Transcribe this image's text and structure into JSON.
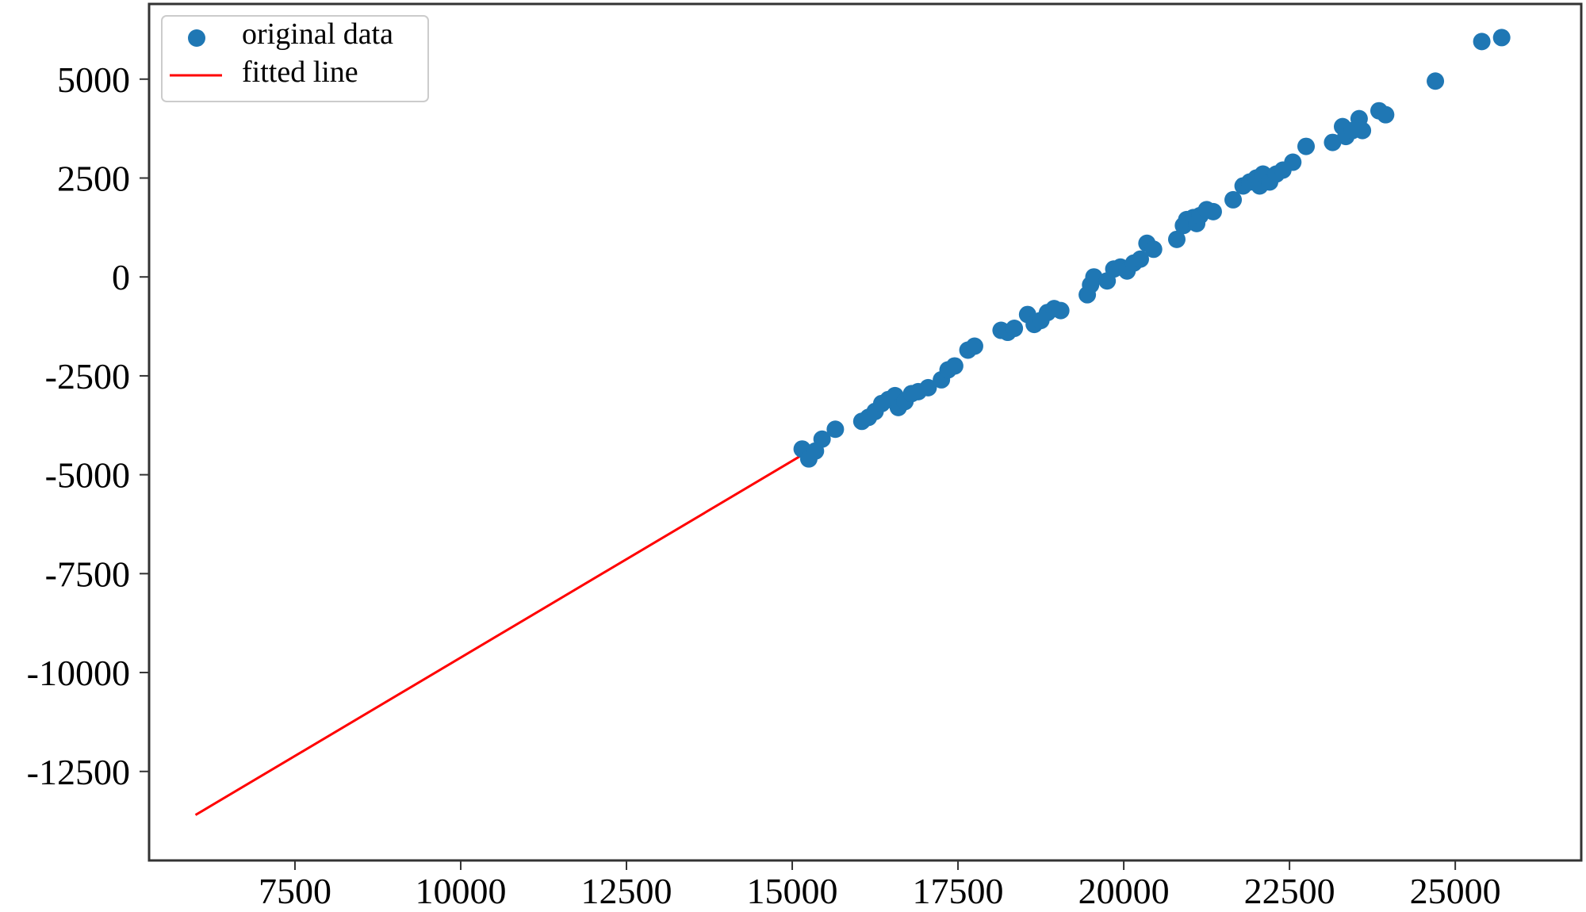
{
  "chart_data": {
    "type": "scatter",
    "title": "",
    "xlabel": "",
    "ylabel": "",
    "xlim": [
      5300,
      26900
    ],
    "ylim": [
      -14750,
      6900
    ],
    "x_ticks": [
      7500,
      10000,
      12500,
      15000,
      17500,
      20000,
      22500,
      25000
    ],
    "y_ticks": [
      5000,
      2500,
      0,
      -2500,
      -5000,
      -7500,
      -10000,
      -12500
    ],
    "grid": false,
    "legend": {
      "placement": "top-left",
      "entries": [
        {
          "label": "original data",
          "marker": "circle",
          "color": "#1f77b4"
        },
        {
          "label": "fitted line",
          "marker": "line",
          "color": "#ff0000"
        }
      ]
    },
    "series": [
      {
        "name": "original data",
        "kind": "scatter",
        "color": "#1f77b4",
        "points": [
          {
            "x": 15150,
            "y": -4350
          },
          {
            "x": 15250,
            "y": -4600
          },
          {
            "x": 15350,
            "y": -4400
          },
          {
            "x": 15450,
            "y": -4100
          },
          {
            "x": 15650,
            "y": -3850
          },
          {
            "x": 16050,
            "y": -3650
          },
          {
            "x": 16150,
            "y": -3550
          },
          {
            "x": 16250,
            "y": -3400
          },
          {
            "x": 16350,
            "y": -3200
          },
          {
            "x": 16450,
            "y": -3100
          },
          {
            "x": 16550,
            "y": -3000
          },
          {
            "x": 16600,
            "y": -3300
          },
          {
            "x": 16700,
            "y": -3150
          },
          {
            "x": 16800,
            "y": -2950
          },
          {
            "x": 16900,
            "y": -2900
          },
          {
            "x": 17050,
            "y": -2800
          },
          {
            "x": 17250,
            "y": -2600
          },
          {
            "x": 17350,
            "y": -2350
          },
          {
            "x": 17450,
            "y": -2250
          },
          {
            "x": 17650,
            "y": -1850
          },
          {
            "x": 17750,
            "y": -1750
          },
          {
            "x": 18150,
            "y": -1350
          },
          {
            "x": 18250,
            "y": -1400
          },
          {
            "x": 18350,
            "y": -1300
          },
          {
            "x": 18550,
            "y": -950
          },
          {
            "x": 18650,
            "y": -1200
          },
          {
            "x": 18750,
            "y": -1100
          },
          {
            "x": 18850,
            "y": -900
          },
          {
            "x": 18950,
            "y": -800
          },
          {
            "x": 19050,
            "y": -850
          },
          {
            "x": 19450,
            "y": -450
          },
          {
            "x": 19500,
            "y": -200
          },
          {
            "x": 19550,
            "y": 0
          },
          {
            "x": 19750,
            "y": -100
          },
          {
            "x": 19850,
            "y": 200
          },
          {
            "x": 19950,
            "y": 250
          },
          {
            "x": 20050,
            "y": 150
          },
          {
            "x": 20150,
            "y": 350
          },
          {
            "x": 20250,
            "y": 450
          },
          {
            "x": 20350,
            "y": 850
          },
          {
            "x": 20450,
            "y": 700
          },
          {
            "x": 20800,
            "y": 950
          },
          {
            "x": 20900,
            "y": 1300
          },
          {
            "x": 20950,
            "y": 1450
          },
          {
            "x": 21050,
            "y": 1500
          },
          {
            "x": 21100,
            "y": 1350
          },
          {
            "x": 21150,
            "y": 1550
          },
          {
            "x": 21250,
            "y": 1700
          },
          {
            "x": 21350,
            "y": 1650
          },
          {
            "x": 21650,
            "y": 1950
          },
          {
            "x": 21800,
            "y": 2300
          },
          {
            "x": 21900,
            "y": 2400
          },
          {
            "x": 22000,
            "y": 2500
          },
          {
            "x": 22050,
            "y": 2300
          },
          {
            "x": 22100,
            "y": 2600
          },
          {
            "x": 22200,
            "y": 2400
          },
          {
            "x": 22300,
            "y": 2600
          },
          {
            "x": 22400,
            "y": 2700
          },
          {
            "x": 22550,
            "y": 2900
          },
          {
            "x": 22750,
            "y": 3300
          },
          {
            "x": 23150,
            "y": 3400
          },
          {
            "x": 23300,
            "y": 3800
          },
          {
            "x": 23350,
            "y": 3550
          },
          {
            "x": 23450,
            "y": 3700
          },
          {
            "x": 23550,
            "y": 4000
          },
          {
            "x": 23600,
            "y": 3700
          },
          {
            "x": 23850,
            "y": 4200
          },
          {
            "x": 23950,
            "y": 4100
          },
          {
            "x": 24700,
            "y": 4950
          },
          {
            "x": 25400,
            "y": 5950
          },
          {
            "x": 25700,
            "y": 6050
          }
        ]
      },
      {
        "name": "fitted line",
        "kind": "line",
        "color": "#ff0000",
        "points": [
          {
            "x": 6000,
            "y": -13600
          },
          {
            "x": 15150,
            "y": -4500
          }
        ]
      }
    ]
  }
}
